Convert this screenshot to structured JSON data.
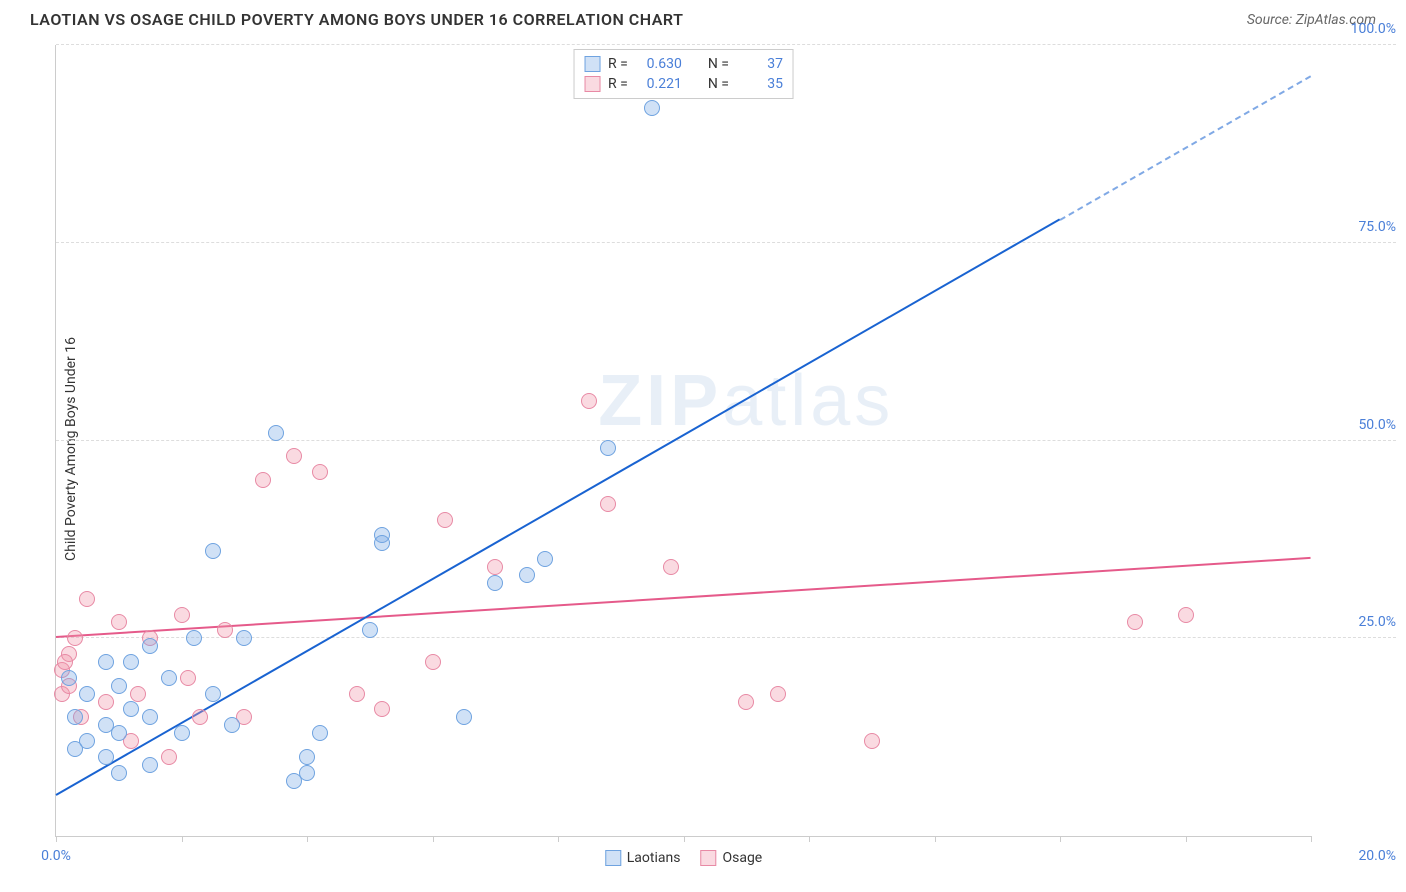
{
  "header": {
    "title": "LAOTIAN VS OSAGE CHILD POVERTY AMONG BOYS UNDER 16 CORRELATION CHART",
    "source_label": "Source: ZipAtlas.com"
  },
  "chart": {
    "type": "scatter",
    "y_axis_label": "Child Poverty Among Boys Under 16",
    "xlim": [
      0,
      20
    ],
    "ylim": [
      0,
      100
    ],
    "x_ticks": [
      0,
      2,
      4,
      6,
      8,
      10,
      12,
      14,
      16,
      18,
      20
    ],
    "x_tick_labels_shown": {
      "0": "0.0%",
      "20": "20.0%"
    },
    "y_ticks": [
      25,
      50,
      75,
      100
    ],
    "y_tick_labels": {
      "25": "25.0%",
      "50": "50.0%",
      "75": "75.0%",
      "100": "100.0%"
    },
    "grid_color": "#dddddd",
    "axis_color": "#cccccc",
    "background_color": "#ffffff",
    "point_radius": 8,
    "series": {
      "laotians": {
        "label": "Laotians",
        "fill": "rgba(120,170,230,0.35)",
        "stroke": "#6fa3e0",
        "r_value": "0.630",
        "n_value": "37",
        "trend": {
          "color": "#1963d1",
          "y_at_x0": 5,
          "y_at_x20": 96,
          "dash_from_x": 16
        },
        "points": [
          [
            0.2,
            20
          ],
          [
            0.3,
            15
          ],
          [
            0.5,
            18
          ],
          [
            0.5,
            12
          ],
          [
            0.8,
            22
          ],
          [
            0.8,
            10
          ],
          [
            0.8,
            14
          ],
          [
            1.0,
            13
          ],
          [
            1.0,
            19
          ],
          [
            1.2,
            16
          ],
          [
            1.2,
            22
          ],
          [
            1.5,
            24
          ],
          [
            1.5,
            9
          ],
          [
            1.5,
            15
          ],
          [
            1.8,
            20
          ],
          [
            2.0,
            13
          ],
          [
            2.2,
            25
          ],
          [
            2.5,
            36
          ],
          [
            2.8,
            14
          ],
          [
            3.0,
            25
          ],
          [
            3.5,
            51
          ],
          [
            3.8,
            7
          ],
          [
            4.0,
            10
          ],
          [
            4.0,
            8
          ],
          [
            4.2,
            13
          ],
          [
            5.0,
            26
          ],
          [
            5.2,
            38
          ],
          [
            5.2,
            37
          ],
          [
            6.5,
            15
          ],
          [
            7.0,
            32
          ],
          [
            7.5,
            33
          ],
          [
            7.8,
            35
          ],
          [
            8.8,
            49
          ],
          [
            9.5,
            92
          ],
          [
            1.0,
            8
          ],
          [
            2.5,
            18
          ],
          [
            0.3,
            11
          ]
        ]
      },
      "osage": {
        "label": "Osage",
        "fill": "rgba(240,150,170,0.35)",
        "stroke": "#e88aa5",
        "r_value": "0.221",
        "n_value": "35",
        "trend": {
          "color": "#e55a8a",
          "y_at_x0": 25,
          "y_at_x20": 35,
          "dash_from_x": 20
        },
        "points": [
          [
            0.1,
            21
          ],
          [
            0.1,
            18
          ],
          [
            0.2,
            23
          ],
          [
            0.2,
            19
          ],
          [
            0.3,
            25
          ],
          [
            0.5,
            30
          ],
          [
            0.8,
            17
          ],
          [
            1.0,
            27
          ],
          [
            1.2,
            12
          ],
          [
            1.5,
            25
          ],
          [
            1.8,
            10
          ],
          [
            2.0,
            28
          ],
          [
            2.3,
            15
          ],
          [
            2.7,
            26
          ],
          [
            3.0,
            15
          ],
          [
            3.3,
            45
          ],
          [
            3.8,
            48
          ],
          [
            4.2,
            46
          ],
          [
            5.2,
            16
          ],
          [
            6.2,
            40
          ],
          [
            7.0,
            34
          ],
          [
            8.5,
            55
          ],
          [
            8.8,
            42
          ],
          [
            9.8,
            34
          ],
          [
            11.0,
            17
          ],
          [
            11.5,
            18
          ],
          [
            13.0,
            12
          ],
          [
            17.2,
            27
          ],
          [
            18.0,
            28
          ],
          [
            0.4,
            15
          ],
          [
            1.3,
            18
          ],
          [
            2.1,
            20
          ],
          [
            4.8,
            18
          ],
          [
            6.0,
            22
          ],
          [
            0.15,
            22
          ]
        ]
      }
    },
    "legend_top": {
      "r_label": "R =",
      "n_label": "N ="
    },
    "watermark": {
      "bold": "ZIP",
      "rest": "atlas"
    }
  }
}
